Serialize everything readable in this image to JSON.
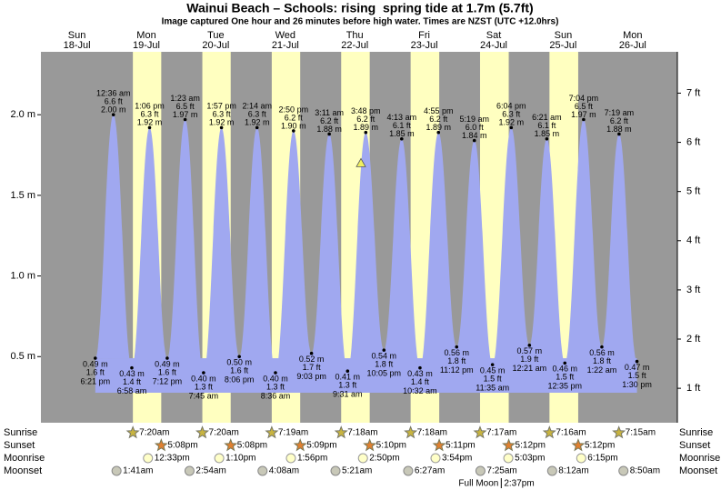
{
  "chart_data": {
    "type": "area",
    "title": "Wainui Beach – Schools: rising  spring tide at 1.7m (5.7ft)",
    "subtitle": "Image captured One hour and 26 minutes before high water. Times are NZST (UTC +12.0hrs)",
    "now_value": 1.7,
    "ylim": [
      0.09,
      2.39
    ],
    "yticks": [
      {
        "value": 0.5,
        "label": "0.5 m"
      },
      {
        "value": 1.0,
        "label": "1.0 m"
      },
      {
        "value": 1.5,
        "label": "1.5 m"
      },
      {
        "value": 2.0,
        "label": "2.0 m"
      }
    ],
    "y2lim": [
      0.3,
      7.84
    ],
    "y2ticks": [
      {
        "value": 1,
        "label": "1 ft"
      },
      {
        "value": 2,
        "label": "2 ft"
      },
      {
        "value": 3,
        "label": "3 ft"
      },
      {
        "value": 4,
        "label": "4 ft"
      },
      {
        "value": 5,
        "label": "5 ft"
      },
      {
        "value": 6,
        "label": "6 ft"
      },
      {
        "value": 7,
        "label": "7 ft"
      }
    ],
    "colors": {
      "tide": "#a0a8f0",
      "daylight": "#ffffc0",
      "night": "#999999",
      "day_label": "#dd0000"
    },
    "row_labels": [
      "Sunrise",
      "Sunset",
      "Moonrise",
      "Moonset"
    ],
    "days": [
      {
        "day": "Sun",
        "date": "18-Jul",
        "sunrise": null,
        "sunset": null,
        "moonrise": null,
        "moonset": null,
        "tides": [
          {
            "time": "6:21 pm",
            "value": 0.49,
            "value_label": "0.49 m",
            "feet_label": "1.6 ft"
          }
        ]
      },
      {
        "day": "Mon",
        "date": "19-Jul",
        "sunrise": "7:20am",
        "sunset": "5:08pm",
        "moonrise": "12:33pm",
        "moonset": "1:41am",
        "tides": [
          {
            "time": "12:36 am",
            "value": 2.0,
            "value_label": "2.00 m",
            "feet_label": "6.6 ft"
          },
          {
            "time": "6:58 am",
            "value": 0.43,
            "value_label": "0.43 m",
            "feet_label": "1.4 ft"
          },
          {
            "time": "1:06 pm",
            "value": 1.92,
            "value_label": "1.92 m",
            "feet_label": "6.3 ft"
          },
          {
            "time": "7:12 pm",
            "value": 0.49,
            "value_label": "0.49 m",
            "feet_label": "1.6 ft"
          }
        ]
      },
      {
        "day": "Tue",
        "date": "20-Jul",
        "sunrise": "7:20am",
        "sunset": "5:08pm",
        "moonrise": "1:10pm",
        "moonset": "2:54am",
        "tides": [
          {
            "time": "1:23 am",
            "value": 1.97,
            "value_label": "1.97 m",
            "feet_label": "6.5 ft"
          },
          {
            "time": "7:45 am",
            "value": 0.4,
            "value_label": "0.40 m",
            "feet_label": "1.3 ft"
          },
          {
            "time": "1:57 pm",
            "value": 1.92,
            "value_label": "1.92 m",
            "feet_label": "6.3 ft"
          },
          {
            "time": "8:06 pm",
            "value": 0.5,
            "value_label": "0.50 m",
            "feet_label": "1.6 ft"
          }
        ]
      },
      {
        "day": "Wed",
        "date": "21-Jul",
        "sunrise": "7:19am",
        "sunset": "5:09pm",
        "moonrise": "1:56pm",
        "moonset": "4:08am",
        "tides": [
          {
            "time": "2:14 am",
            "value": 1.92,
            "value_label": "1.92 m",
            "feet_label": "6.3 ft"
          },
          {
            "time": "8:36 am",
            "value": 0.4,
            "value_label": "0.40 m",
            "feet_label": "1.3 ft"
          },
          {
            "time": "2:50 pm",
            "value": 1.9,
            "value_label": "1.90 m",
            "feet_label": "6.2 ft"
          },
          {
            "time": "9:03 pm",
            "value": 0.52,
            "value_label": "0.52 m",
            "feet_label": "1.7 ft"
          }
        ]
      },
      {
        "day": "Thu",
        "date": "22-Jul",
        "sunrise": "7:18am",
        "sunset": "5:10pm",
        "moonrise": "2:50pm",
        "moonset": "5:21am",
        "tides": [
          {
            "time": "3:11 am",
            "value": 1.88,
            "value_label": "1.88 m",
            "feet_label": "6.2 ft"
          },
          {
            "time": "9:31 am",
            "value": 0.41,
            "value_label": "0.41 m",
            "feet_label": "1.3 ft"
          },
          {
            "time": "3:48 pm",
            "value": 1.89,
            "value_label": "1.89 m",
            "feet_label": "6.2 ft"
          },
          {
            "time": "10:05 pm",
            "value": 0.54,
            "value_label": "0.54 m",
            "feet_label": "1.8 ft"
          }
        ]
      },
      {
        "day": "Fri",
        "date": "23-Jul",
        "sunrise": "7:18am",
        "sunset": "5:11pm",
        "moonrise": "3:54pm",
        "moonset": "6:27am",
        "tides": [
          {
            "time": "4:13 am",
            "value": 1.85,
            "value_label": "1.85 m",
            "feet_label": "6.1 ft"
          },
          {
            "time": "10:32 am",
            "value": 0.43,
            "value_label": "0.43 m",
            "feet_label": "1.4 ft"
          },
          {
            "time": "4:55 pm",
            "value": 1.89,
            "value_label": "1.89 m",
            "feet_label": "6.2 ft"
          },
          {
            "time": "11:12 pm",
            "value": 0.56,
            "value_label": "0.56 m",
            "feet_label": "1.8 ft"
          }
        ]
      },
      {
        "day": "Sat",
        "date": "24-Jul",
        "sunrise": "7:17am",
        "sunset": "5:12pm",
        "moonrise": "5:03pm",
        "moonset": "7:25am",
        "moon_phase": "Full Moon",
        "moon_phase_time": "2:37pm",
        "tides": [
          {
            "time": "5:19 am",
            "value": 1.84,
            "value_label": "1.84 m",
            "feet_label": "6.0 ft"
          },
          {
            "time": "11:35 am",
            "value": 0.45,
            "value_label": "0.45 m",
            "feet_label": "1.5 ft"
          },
          {
            "time": "6:04 pm",
            "value": 1.92,
            "value_label": "1.92 m",
            "feet_label": "6.3 ft"
          }
        ]
      },
      {
        "day": "Sun",
        "date": "25-Jul",
        "sunrise": "7:16am",
        "sunset": "5:12pm",
        "moonrise": "6:15pm",
        "moonset": "8:12am",
        "tides": [
          {
            "time": "12:21 am",
            "value": 0.57,
            "value_label": "0.57 m",
            "feet_label": "1.9 ft"
          },
          {
            "time": "6:21 am",
            "value": 1.85,
            "value_label": "1.85 m",
            "feet_label": "6.1 ft"
          },
          {
            "time": "12:35 pm",
            "value": 0.46,
            "value_label": "0.46 m",
            "feet_label": "1.5 ft"
          },
          {
            "time": "7:04 pm",
            "value": 1.97,
            "value_label": "1.97 m",
            "feet_label": "6.5 ft"
          }
        ]
      },
      {
        "day": "Mon",
        "date": "26-Jul",
        "sunrise": "7:15am",
        "sunset": null,
        "moonrise": null,
        "moonset": "8:50am",
        "tides": [
          {
            "time": "1:22 am",
            "value": 0.56,
            "value_label": "0.56 m",
            "feet_label": "1.8 ft"
          },
          {
            "time": "7:19 am",
            "value": 1.88,
            "value_label": "1.88 m",
            "feet_label": "6.2 ft"
          },
          {
            "time": "1:30 pm",
            "value": 0.47,
            "value_label": "0.47 m",
            "feet_label": "1.5 ft"
          }
        ]
      }
    ]
  }
}
